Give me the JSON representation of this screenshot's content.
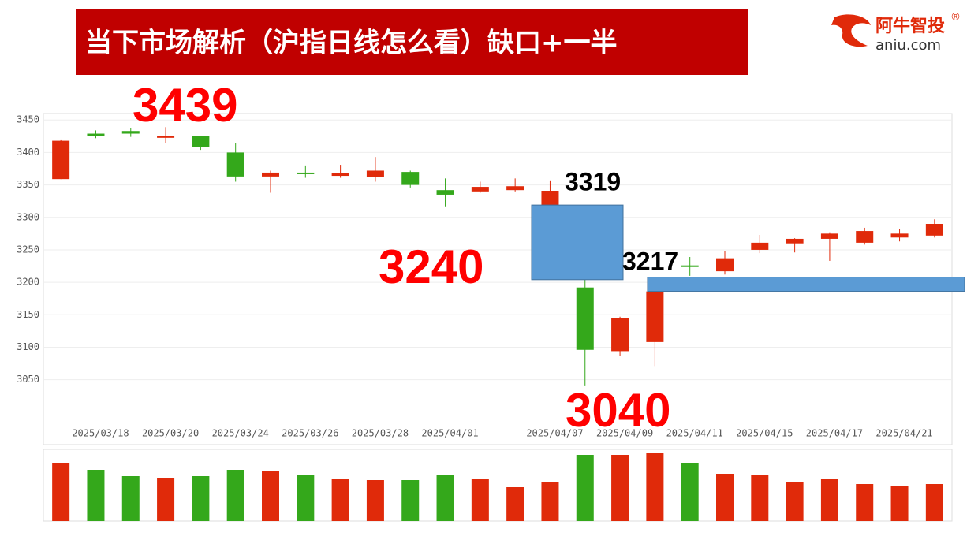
{
  "header": {
    "title": "当下市场解析（沪指日线怎么看）缺口+一半",
    "logo": "阿牛智投",
    "logo_mark": "®",
    "logo_url": "aniu.com"
  },
  "chart_data": [
    {
      "type": "candlestick",
      "categories": [
        null,
        "2025/03/18",
        null,
        "2025/03/20",
        null,
        "2025/03/24",
        null,
        "2025/03/26",
        null,
        "2025/03/28",
        null,
        "2025/04/01",
        null,
        null,
        "2025/04/07",
        null,
        "2025/04/09",
        null,
        "2025/04/11",
        null,
        "2025/04/15",
        null,
        "2025/04/17",
        null,
        "2025/04/21",
        null
      ],
      "open": [
        3359,
        3429,
        3433,
        3424,
        3425,
        3400,
        3363,
        3369,
        3364,
        3362,
        3370,
        3342,
        3340,
        3342,
        3319,
        3192,
        3094,
        3108,
        3226,
        3217,
        3250,
        3260,
        3267,
        3261,
        3269,
        3272
      ],
      "high": [
        3420,
        3434,
        3437,
        3439,
        3426,
        3414,
        3372,
        3380,
        3381,
        3393,
        3372,
        3360,
        3355,
        3360,
        3357,
        3204,
        3147,
        3186,
        3239,
        3248,
        3273,
        3268,
        3277,
        3284,
        3282,
        3297
      ],
      "low": [
        3359,
        3422,
        3424,
        3414,
        3404,
        3355,
        3338,
        3361,
        3361,
        3355,
        3346,
        3317,
        3338,
        3340,
        3319,
        3040,
        3086,
        3071,
        3210,
        3212,
        3245,
        3246,
        3233,
        3258,
        3263,
        3269
      ],
      "close": [
        3418,
        3425,
        3429,
        3425,
        3408,
        3363,
        3369,
        3368,
        3368,
        3372,
        3350,
        3335,
        3347,
        3348,
        3341,
        3096,
        3145,
        3186,
        3225,
        3237,
        3261,
        3267,
        3275,
        3279,
        3275,
        3290
      ],
      "up_color": "#e02a0a",
      "down_color": "#34a81b",
      "ylim": [
        2950,
        3460
      ],
      "yticks": [
        3050,
        3100,
        3150,
        3200,
        3250,
        3300,
        3350,
        3400,
        3450
      ],
      "grid": true,
      "gaps": [
        {
          "from": 3204,
          "to": 3319,
          "color": "#5b9bd5"
        },
        {
          "from": 3186,
          "to": 3208,
          "color": "#5b9bd5"
        }
      ],
      "annotations": [
        {
          "text": "3439",
          "color": "#ff0000"
        },
        {
          "text": "3319",
          "color": "#000000"
        },
        {
          "text": "3240",
          "color": "#ff0000"
        },
        {
          "text": "3217",
          "color": "#000000"
        },
        {
          "text": "3040",
          "color": "#ff0000"
        }
      ]
    },
    {
      "type": "bar",
      "values": [
        74,
        65,
        57,
        55,
        57,
        65,
        64,
        58,
        54,
        52,
        52,
        59,
        53,
        43,
        50,
        84,
        84,
        86,
        74,
        60,
        59,
        49,
        54,
        47,
        45,
        47
      ],
      "colors": [
        "#e02a0a",
        "#34a81b",
        "#34a81b",
        "#e02a0a",
        "#34a81b",
        "#34a81b",
        "#e02a0a",
        "#34a81b",
        "#e02a0a",
        "#e02a0a",
        "#34a81b",
        "#34a81b",
        "#e02a0a",
        "#e02a0a",
        "#e02a0a",
        "#34a81b",
        "#e02a0a",
        "#e02a0a",
        "#34a81b",
        "#e02a0a",
        "#e02a0a",
        "#e02a0a",
        "#e02a0a",
        "#e02a0a",
        "#e02a0a",
        "#e02a0a"
      ],
      "ylim": [
        0,
        90
      ]
    }
  ]
}
